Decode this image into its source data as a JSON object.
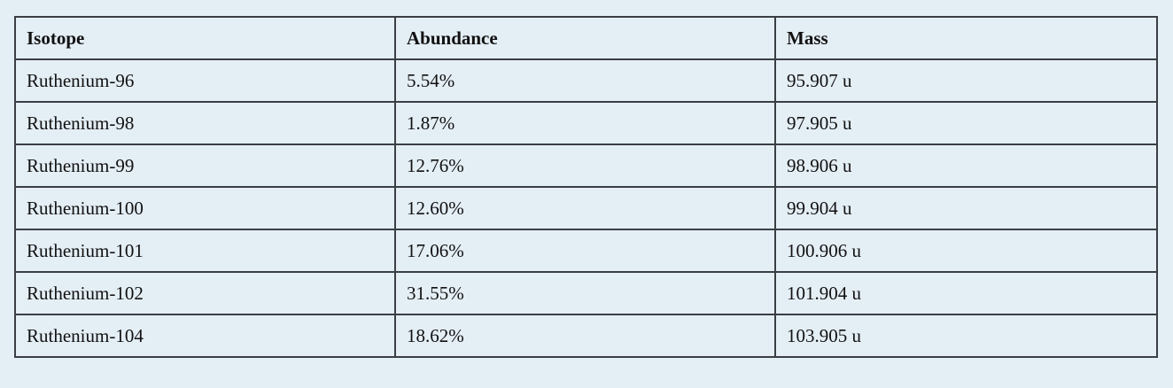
{
  "table": {
    "headers": [
      "Isotope",
      "Abundance",
      "Mass"
    ],
    "rows": [
      [
        "Ruthenium-96",
        "5.54%",
        "95.907 u"
      ],
      [
        "Ruthenium-98",
        "1.87%",
        "97.905 u"
      ],
      [
        "Ruthenium-99",
        "12.76%",
        "98.906 u"
      ],
      [
        "Ruthenium-100",
        "12.60%",
        "99.904 u"
      ],
      [
        "Ruthenium-101",
        "17.06%",
        "100.906 u"
      ],
      [
        "Ruthenium-102",
        "31.55%",
        "101.904 u"
      ],
      [
        "Ruthenium-104",
        "18.62%",
        "103.905 u"
      ]
    ]
  }
}
